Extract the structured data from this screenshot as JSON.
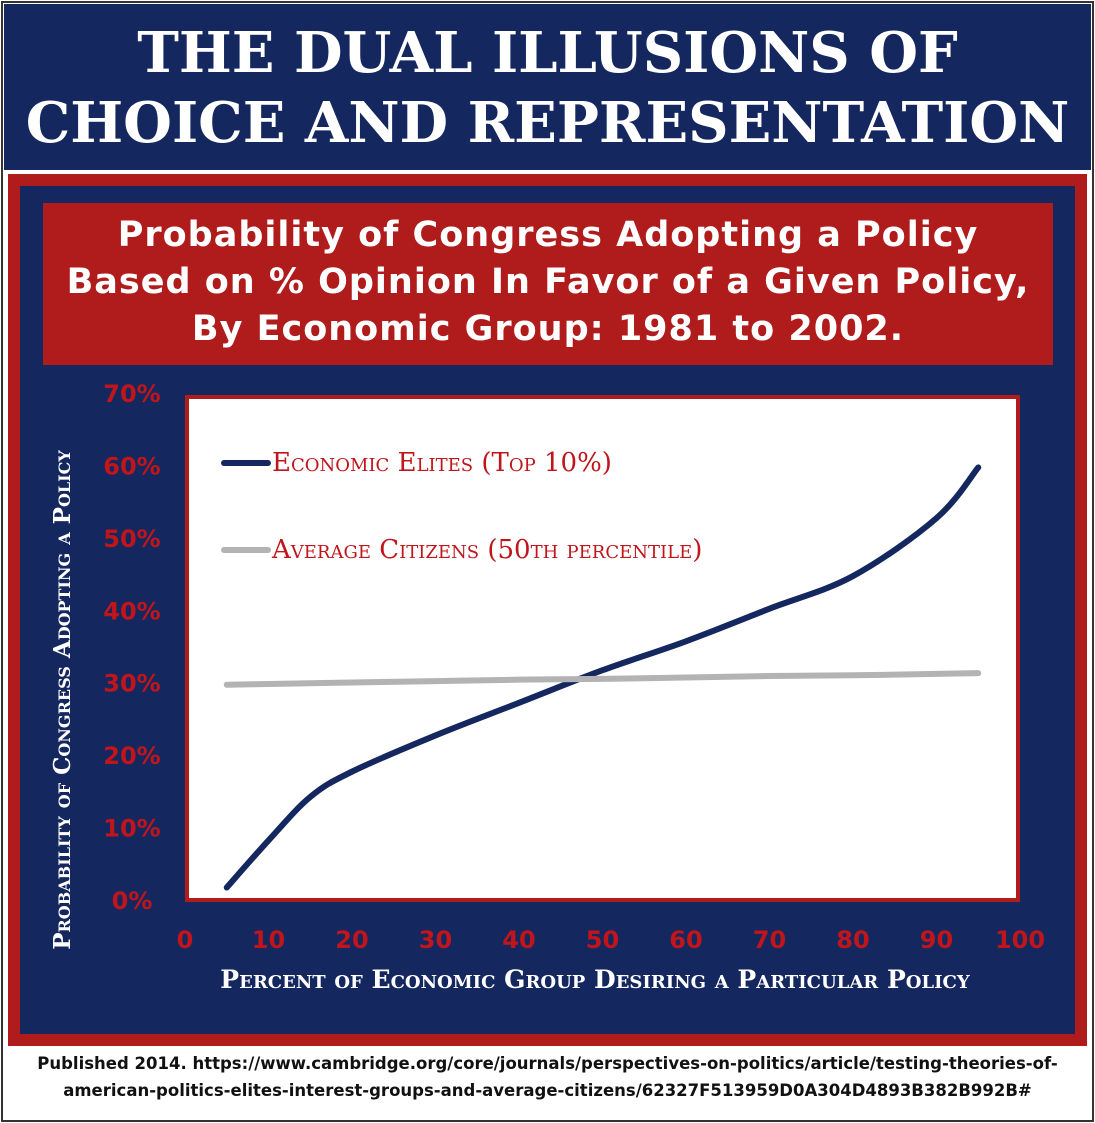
{
  "header": {
    "title": "THE DUAL ILLUSIONS OF CHOICE AND REPRESENTATION"
  },
  "chart_data": {
    "type": "line",
    "title": "Probability of Congress Adopting a Policy Based on % Opinion In Favor of a Given Policy, By Economic Group: 1981 to 2002.",
    "x_label": "Percent of Economic Group Desiring a Particular Policy",
    "y_label": "Probability of Congress Adopting a Policy",
    "x": [
      5,
      10,
      15,
      20,
      30,
      40,
      50,
      60,
      70,
      80,
      90,
      95
    ],
    "series": [
      {
        "name": "Economic Elites (Top 10%)",
        "color": "#14275e",
        "values": [
          2,
          8.5,
          14.5,
          18,
          23,
          27.5,
          32,
          36,
          40.5,
          45,
          53,
          60
        ]
      },
      {
        "name": "Average Citizens (50th percentile)",
        "color": "#b3b3b3",
        "values": [
          30,
          30.1,
          30.2,
          30.3,
          30.5,
          30.7,
          30.8,
          31,
          31.2,
          31.3,
          31.5,
          31.6
        ]
      }
    ],
    "xlim": [
      0,
      100
    ],
    "xticks": [
      0,
      10,
      20,
      30,
      40,
      50,
      60,
      70,
      80,
      90,
      100
    ],
    "ylim": [
      0,
      70
    ],
    "yticks": [
      {
        "value": 0,
        "label": "0%"
      },
      {
        "value": 10,
        "label": "10%"
      },
      {
        "value": 20,
        "label": "20%"
      },
      {
        "value": 30,
        "label": "30%"
      },
      {
        "value": 40,
        "label": "40%"
      },
      {
        "value": 50,
        "label": "50%"
      },
      {
        "value": 60,
        "label": "60%"
      },
      {
        "value": 70,
        "label": "70%"
      }
    ],
    "legend": "upper left",
    "grid": false
  },
  "footer": {
    "lines": [
      "Published 2014. https://www.cambridge.org/core/journals/perspectives-on-politics/article/testing-theories-of-",
      "american-politics-elites-interest-groups-and-average-citizens/62327F513959D0A304D4893B382B992B#"
    ]
  }
}
